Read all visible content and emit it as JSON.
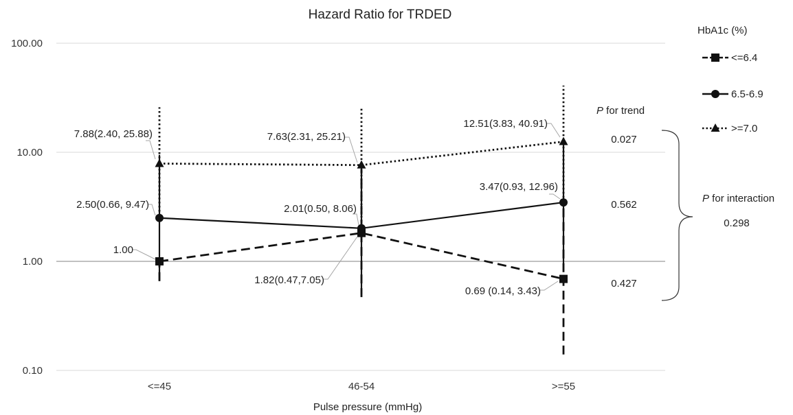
{
  "chart_data": {
    "type": "line",
    "title": "Hazard Ratio for TRDED",
    "xlabel": "Pulse pressure (mmHg)",
    "ylabel": "",
    "y_scale": "log",
    "ylim": [
      0.1,
      100
    ],
    "y_ticks": [
      0.1,
      1,
      10,
      100
    ],
    "y_tick_labels": [
      "0.10",
      "1.00",
      "10.00",
      "100.00"
    ],
    "reference_line": 1,
    "categories": [
      "<=45",
      "46-54",
      ">=55"
    ],
    "legend_title": "HbA1c (%)",
    "legend_position": "right",
    "series": [
      {
        "name": "<=6.4",
        "marker": "square",
        "line_style": "dashed",
        "values": [
          1.0,
          1.82,
          0.69
        ],
        "ci_low": [
          0.66,
          0.47,
          0.14
        ],
        "ci_high": [
          1.0,
          7.05,
          3.43
        ],
        "labels": [
          "1.00",
          "1.82(0.47,7.05)",
          "0.69 (0.14, 3.43)"
        ],
        "p_trend": "0.427"
      },
      {
        "name": "6.5-6.9",
        "marker": "circle",
        "line_style": "solid",
        "values": [
          2.5,
          2.01,
          3.47
        ],
        "ci_low": [
          0.66,
          0.5,
          0.93
        ],
        "ci_high": [
          9.47,
          8.06,
          12.96
        ],
        "labels": [
          "2.50(0.66, 9.47)",
          "2.01(0.50, 8.06)",
          "3.47(0.93, 12.96)"
        ],
        "p_trend": "0.562"
      },
      {
        "name": ">=7.0",
        "marker": "triangle",
        "line_style": "dotted",
        "values": [
          7.88,
          7.63,
          12.51
        ],
        "ci_low": [
          2.4,
          2.31,
          3.83
        ],
        "ci_high": [
          25.88,
          25.21,
          40.91
        ],
        "labels": [
          "7.88(2.40, 25.88)",
          "7.63(2.31, 25.21)",
          "12.51(3.83, 40.91)"
        ],
        "p_trend": "0.027"
      }
    ],
    "p_trend_header": {
      "italic": "P",
      "text": " for trend"
    },
    "p_interaction_header": {
      "italic": "P",
      "text": " for interaction"
    },
    "p_interaction": "0.298",
    "grid": true
  }
}
